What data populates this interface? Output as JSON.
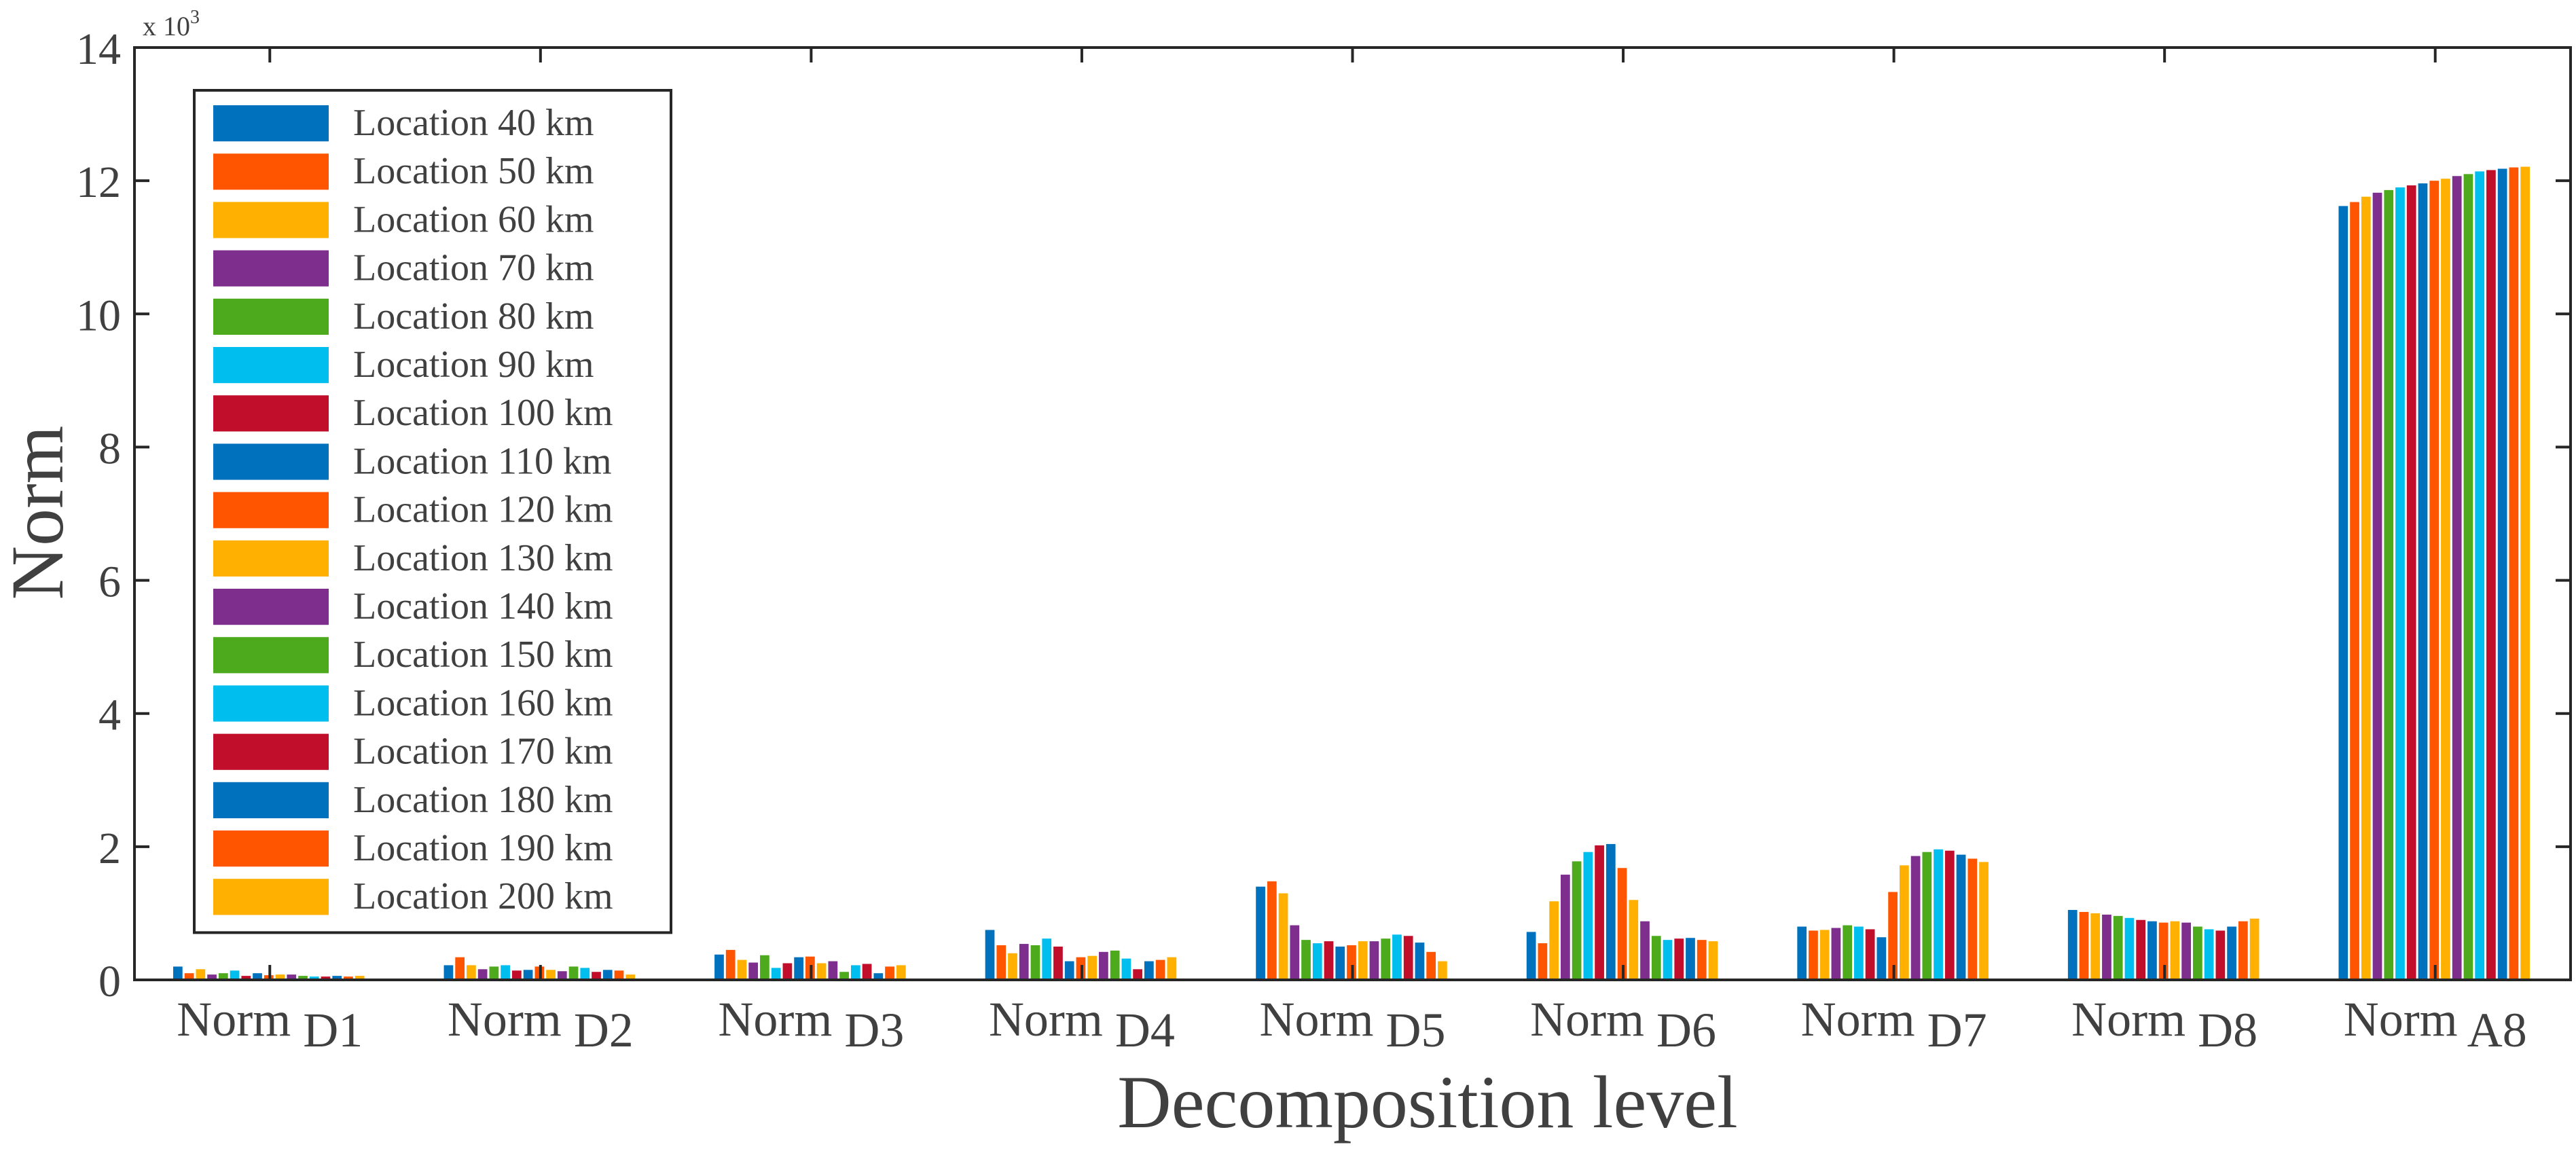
{
  "chart_data": {
    "type": "bar",
    "title": "",
    "xlabel": "Decomposition level",
    "ylabel": "Norm",
    "ylim": [
      0,
      14
    ],
    "yticks": [
      0,
      2,
      4,
      6,
      8,
      10,
      12,
      14
    ],
    "y_scale_label": "x 10",
    "y_scale_exponent": "3",
    "grid": false,
    "legend_position": "top-left",
    "categories": [
      {
        "base": "Norm",
        "sub": "D1"
      },
      {
        "base": "Norm",
        "sub": "D2"
      },
      {
        "base": "Norm",
        "sub": "D3"
      },
      {
        "base": "Norm",
        "sub": "D4"
      },
      {
        "base": "Norm",
        "sub": "D5"
      },
      {
        "base": "Norm",
        "sub": "D6"
      },
      {
        "base": "Norm",
        "sub": "D7"
      },
      {
        "base": "Norm",
        "sub": "D8"
      },
      {
        "base": "Norm",
        "sub": "A8"
      }
    ],
    "series": [
      {
        "name": "Location 40 km",
        "color": "#0072BD",
        "values": [
          0.2,
          0.22,
          0.38,
          0.75,
          1.4,
          0.72,
          0.8,
          1.05,
          11.62
        ]
      },
      {
        "name": "Location 50 km",
        "color": "#FF5500",
        "values": [
          0.1,
          0.34,
          0.45,
          0.52,
          1.48,
          0.55,
          0.74,
          1.02,
          11.68
        ]
      },
      {
        "name": "Location 60 km",
        "color": "#FFB000",
        "values": [
          0.16,
          0.22,
          0.3,
          0.4,
          1.3,
          1.18,
          0.75,
          1.0,
          11.76
        ]
      },
      {
        "name": "Location 70 km",
        "color": "#7E2F8E",
        "values": [
          0.08,
          0.16,
          0.26,
          0.54,
          0.82,
          1.58,
          0.78,
          0.98,
          11.82
        ]
      },
      {
        "name": "Location 80 km",
        "color": "#4DAA1C",
        "values": [
          0.1,
          0.2,
          0.37,
          0.52,
          0.6,
          1.78,
          0.82,
          0.96,
          11.86
        ]
      },
      {
        "name": "Location 90 km",
        "color": "#00BFEF",
        "values": [
          0.14,
          0.22,
          0.18,
          0.62,
          0.55,
          1.92,
          0.8,
          0.93,
          11.9
        ]
      },
      {
        "name": "Location 100 km",
        "color": "#C00E2B",
        "values": [
          0.06,
          0.14,
          0.25,
          0.5,
          0.58,
          2.02,
          0.76,
          0.9,
          11.93
        ]
      },
      {
        "name": "Location 110 km",
        "color": "#0072BD",
        "values": [
          0.1,
          0.15,
          0.34,
          0.28,
          0.5,
          2.04,
          0.64,
          0.88,
          11.96
        ]
      },
      {
        "name": "Location 120 km",
        "color": "#FF5500",
        "values": [
          0.07,
          0.2,
          0.35,
          0.34,
          0.52,
          1.68,
          1.32,
          0.86,
          12.0
        ]
      },
      {
        "name": "Location 130 km",
        "color": "#FFB000",
        "values": [
          0.08,
          0.15,
          0.25,
          0.36,
          0.58,
          1.2,
          1.72,
          0.88,
          12.03
        ]
      },
      {
        "name": "Location 140 km",
        "color": "#7E2F8E",
        "values": [
          0.08,
          0.13,
          0.28,
          0.42,
          0.58,
          0.88,
          1.86,
          0.86,
          12.07
        ]
      },
      {
        "name": "Location 150 km",
        "color": "#4DAA1C",
        "values": [
          0.06,
          0.2,
          0.12,
          0.44,
          0.62,
          0.66,
          1.92,
          0.8,
          12.1
        ]
      },
      {
        "name": "Location 160 km",
        "color": "#00BFEF",
        "values": [
          0.05,
          0.18,
          0.22,
          0.32,
          0.68,
          0.6,
          1.96,
          0.76,
          12.14
        ]
      },
      {
        "name": "Location 170 km",
        "color": "#C00E2B",
        "values": [
          0.05,
          0.12,
          0.24,
          0.16,
          0.66,
          0.62,
          1.94,
          0.74,
          12.16
        ]
      },
      {
        "name": "Location 180 km",
        "color": "#0072BD",
        "values": [
          0.06,
          0.15,
          0.1,
          0.28,
          0.56,
          0.63,
          1.88,
          0.8,
          12.18
        ]
      },
      {
        "name": "Location 190 km",
        "color": "#FF5500",
        "values": [
          0.05,
          0.14,
          0.2,
          0.3,
          0.42,
          0.6,
          1.82,
          0.88,
          12.2
        ]
      },
      {
        "name": "Location 200 km",
        "color": "#FFB000",
        "values": [
          0.06,
          0.08,
          0.22,
          0.34,
          0.28,
          0.58,
          1.77,
          0.92,
          12.21
        ]
      }
    ]
  }
}
